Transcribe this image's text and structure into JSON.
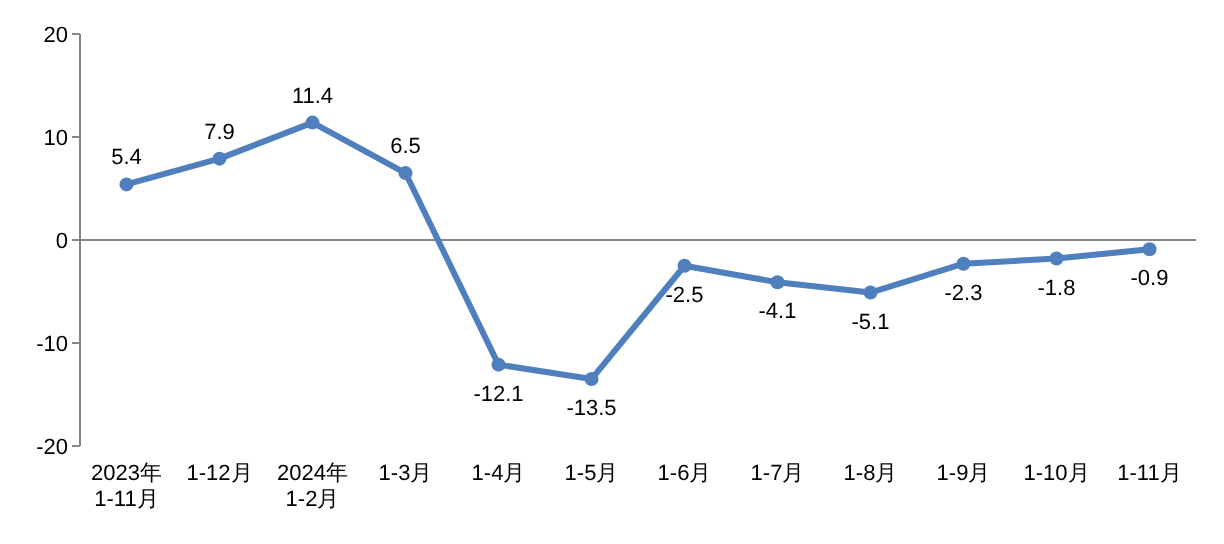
{
  "chart_data": {
    "type": "line",
    "categories": [
      "2023年\n1-11月",
      "1-12月",
      "2024年\n1-2月",
      "1-3月",
      "1-4月",
      "1-5月",
      "1-6月",
      "1-7月",
      "1-8月",
      "1-9月",
      "1-10月",
      "1-11月"
    ],
    "series": [
      {
        "color": "#4f7fbd",
        "values": [
          5.4,
          7.9,
          11.4,
          6.5,
          -12.1,
          -13.5,
          -2.5,
          -4.1,
          -5.1,
          -2.3,
          -1.8,
          -0.9
        ]
      }
    ],
    "ylim": [
      -20,
      20
    ],
    "yticks": [
      -20,
      -10,
      0,
      10,
      20
    ],
    "marker": "circle",
    "line_style": "solid",
    "data_labels": true
  }
}
